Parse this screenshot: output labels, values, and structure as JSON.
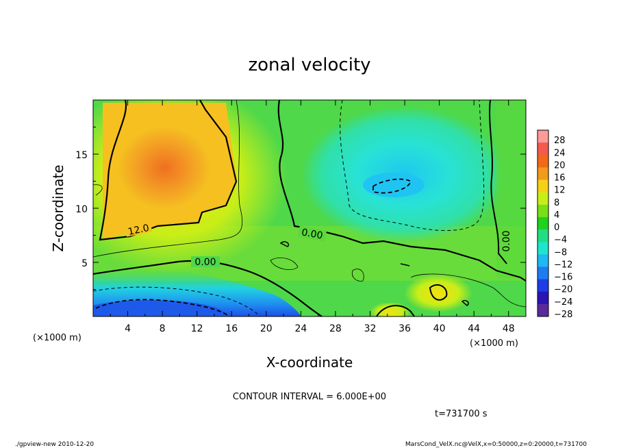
{
  "chart_data": {
    "type": "heatmap",
    "title": "zonal velocity",
    "xlabel": "X-coordinate",
    "ylabel": "Z-coordinate",
    "x_units": "(×1000 m)",
    "z_units": "(×1000 m)",
    "xlim": [
      0,
      50
    ],
    "ylim": [
      0,
      20
    ],
    "x_ticks": [
      "4",
      "8",
      "12",
      "16",
      "20",
      "24",
      "28",
      "32",
      "36",
      "40",
      "44",
      "48"
    ],
    "y_ticks": [
      "5",
      "10",
      "15"
    ],
    "colorbar_levels": [
      "28",
      "24",
      "20",
      "16",
      "12",
      "8",
      "4",
      "0",
      "−4",
      "−8",
      "−12",
      "−16",
      "−20",
      "−24",
      "−28"
    ],
    "colorbar_colors": [
      "#ff9a9a",
      "#f55a4e",
      "#f06a1a",
      "#f29a1c",
      "#f6d018",
      "#c8ee18",
      "#7adf18",
      "#1ed21e",
      "#22dd82",
      "#1ee6cc",
      "#1eb8f2",
      "#1e7cf0",
      "#1e3ce8",
      "#2a14b4",
      "#5a2a9a"
    ],
    "contour_labels": [
      "12.0",
      "0.00",
      "0.00",
      "0.00"
    ],
    "contour_interval_label": "CONTOUR INTERVAL = 6.000E+00",
    "time_label": "t=731700 s",
    "grid": false
  },
  "footer": {
    "left": "./gpview-new  2010-12-20",
    "right": "MarsCond_VelX.nc@VelX,x=0:50000,z=0:20000,t=731700"
  }
}
